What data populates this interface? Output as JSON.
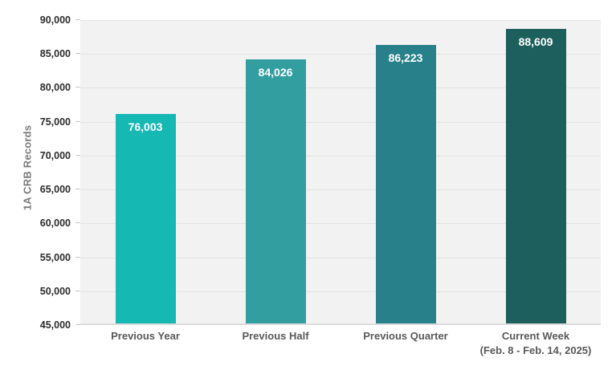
{
  "chart_data": {
    "type": "bar",
    "title": "",
    "ylabel": "1A CRB Records",
    "xlabel": "",
    "categories": [
      "Previous Year",
      "Previous Half",
      "Previous Quarter",
      "Current Week\n(Feb. 8 - Feb. 14, 2025)"
    ],
    "values": [
      76003,
      84026,
      86223,
      88609
    ],
    "value_labels": [
      "76,003",
      "84,026",
      "86,223",
      "88,609"
    ],
    "bar_colors": [
      "#16b8b3",
      "#339ea0",
      "#28818a",
      "#1d5f5c"
    ],
    "ylim": [
      45000,
      90000
    ],
    "ytick_step": 5000,
    "ytick_labels": [
      "45,000",
      "50,000",
      "55,000",
      "60,000",
      "65,000",
      "70,000",
      "75,000",
      "80,000",
      "85,000",
      "90,000"
    ],
    "grid": true,
    "legend": "none",
    "colors": {
      "plot_background": "#f2f2f2",
      "gridline": "#e2e2e2",
      "axis_line": "#dcdcdc",
      "tick_mark": "#c6c6c6",
      "ytick_text": "#2b2b2b",
      "category_text": "#595959",
      "axis_title_text": "#7a7a7a",
      "data_label_text": "#ffffff",
      "page_background": "#ffffff"
    }
  }
}
